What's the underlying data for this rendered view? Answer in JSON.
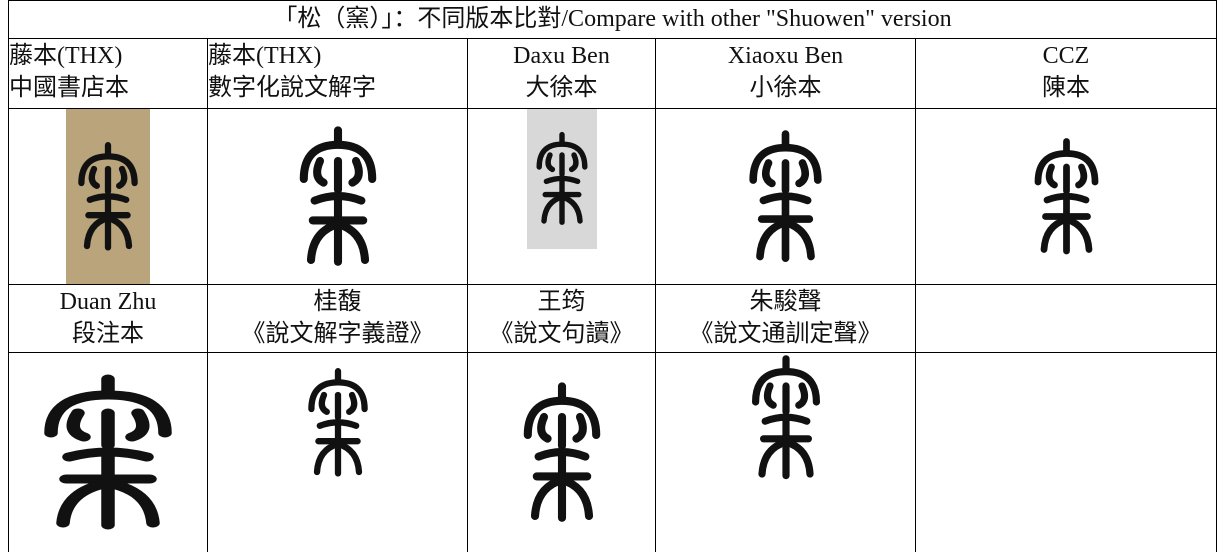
{
  "table": {
    "title": "「松（窯）」：不同版本比對/Compare with other \"Shuowen\" version",
    "header_rows": [
      [
        [
          "藤本(THX)",
          "中國書店本"
        ],
        [
          "藤本(THX)",
          "數字化說文解字"
        ],
        [
          "Daxu Ben",
          "大徐本"
        ],
        [
          "Xiaoxu Ben",
          "小徐本"
        ],
        [
          "CCZ",
          "陳本"
        ]
      ],
      [
        [
          "Duan Zhu",
          "段注本"
        ],
        [
          "桂馥",
          "《說文解字義證》"
        ],
        [
          "王筠",
          "《說文句讀》"
        ],
        [
          "朱駿聲",
          "《說文通訓定聲》"
        ]
      ]
    ]
  }
}
